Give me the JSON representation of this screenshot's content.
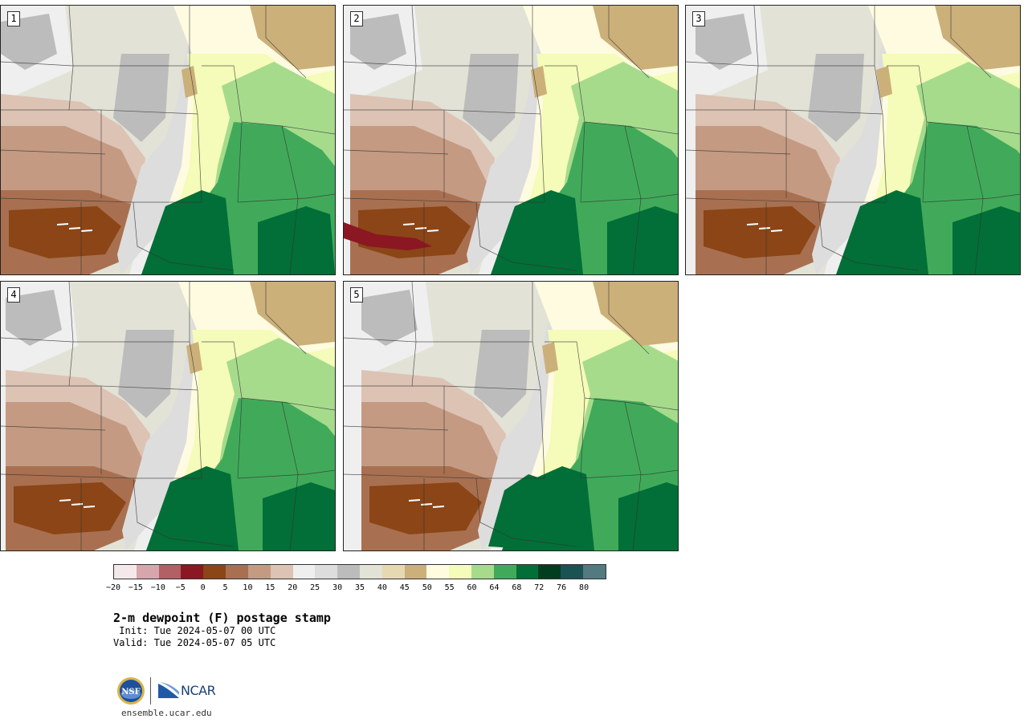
{
  "panels": [
    {
      "label": "1",
      "variant": 1
    },
    {
      "label": "2",
      "variant": 2
    },
    {
      "label": "3",
      "variant": 3
    },
    {
      "label": "4",
      "variant": 4
    },
    {
      "label": "5",
      "variant": 5
    }
  ],
  "colorbar": {
    "colors": [
      "#f4e8ea",
      "#d7a5ad",
      "#b26065",
      "#8b1723",
      "#8b4516",
      "#a87050",
      "#c49a82",
      "#ddc3b4",
      "#efefef",
      "#dddddd",
      "#bcbcbc",
      "#e2e2d6",
      "#e6d8b0",
      "#cbb07a",
      "#fffbe1",
      "#f5fbb8",
      "#a6db8c",
      "#41aa5a",
      "#016f37",
      "#013d1f",
      "#1b5355",
      "#527a80"
    ],
    "tick_labels": [
      "−20",
      "−15",
      "−10",
      "−5",
      "0",
      "5",
      "10",
      "15",
      "20",
      "25",
      "30",
      "35",
      "40",
      "45",
      "50",
      "55",
      "60",
      "64",
      "68",
      "72",
      "76",
      "80"
    ]
  },
  "title": "2-m dewpoint (F) postage stamp",
  "init_text": " Init: Tue 2024-05-07 00 UTC",
  "valid_text": "Valid: Tue 2024-05-07 05 UTC",
  "logos": {
    "nsf": "NSF",
    "ncar": "NCAR"
  },
  "site": "ensemble.ucar.edu"
}
